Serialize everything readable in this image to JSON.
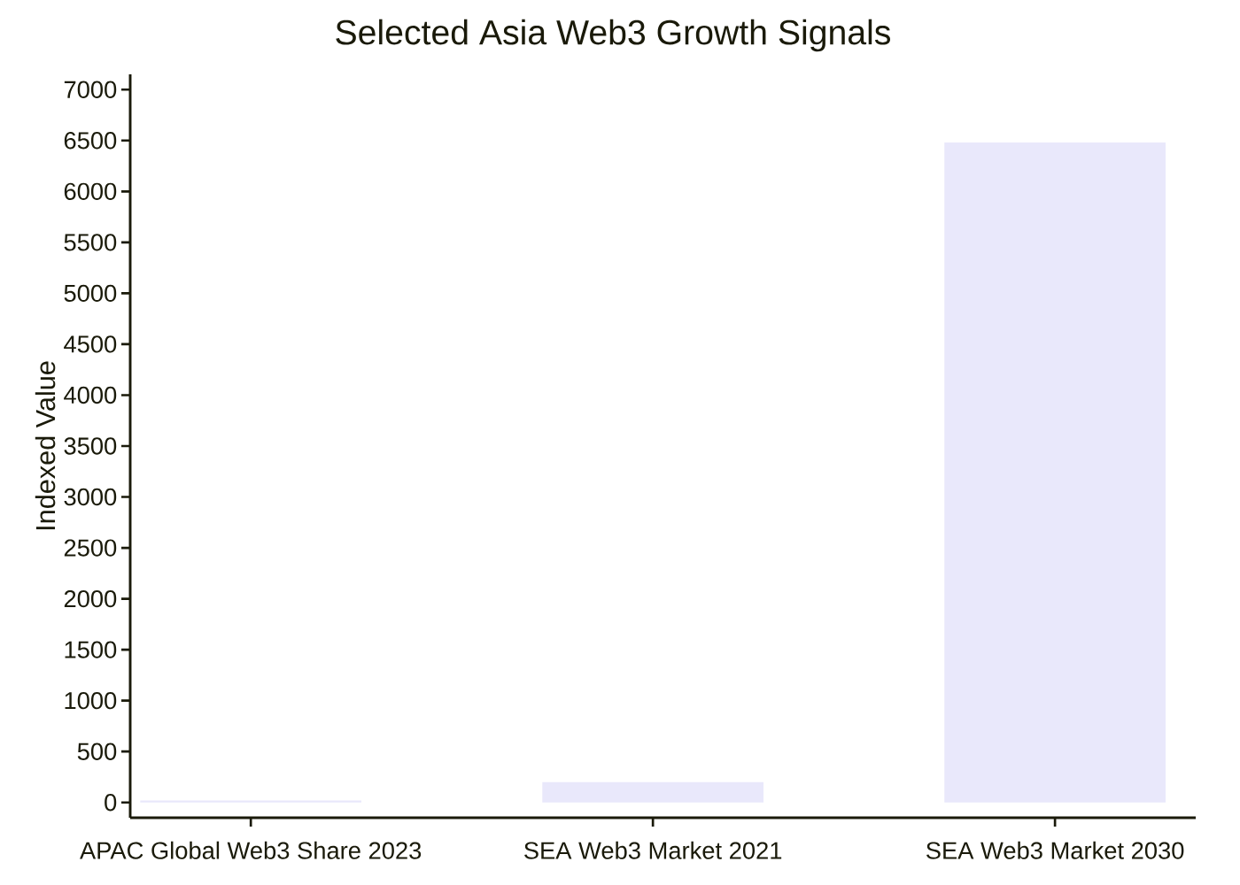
{
  "chart_data": {
    "type": "bar",
    "title": "Selected Asia Web3 Growth Signals",
    "ylabel": "Indexed Value",
    "categories": [
      "APAC Global Web3 Share 2023",
      "SEA Web3 Market 2021",
      "SEA Web3 Market 2030"
    ],
    "values": [
      20,
      200,
      6480
    ],
    "color": "#e9e8fb",
    "ylim": [
      -150,
      7150
    ],
    "yticks": [
      0,
      500,
      1000,
      1500,
      2000,
      2500,
      3000,
      3500,
      4000,
      4500,
      5000,
      5500,
      6000,
      6500,
      7000
    ]
  }
}
